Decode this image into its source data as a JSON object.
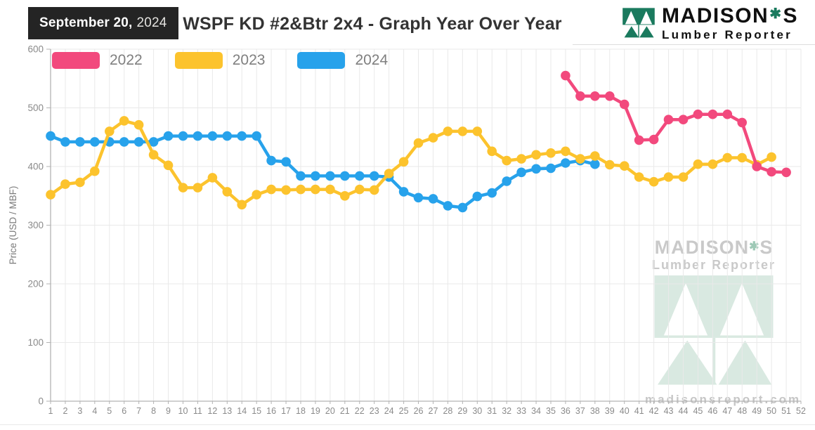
{
  "header": {
    "date_bold": "September 20,",
    "date_year": "2024",
    "brand": {
      "name": "MADISON",
      "suffix": "S",
      "subtitle": "Lumber Reporter"
    }
  },
  "watermark": {
    "brand": "MADISON",
    "suffix": "S",
    "subtitle": "Lumber Reporter",
    "site": "madisonsreport.com"
  },
  "colors": {
    "brand_green": "#1A7A5E",
    "watermark_green": "#D9E9E1",
    "grid": "#e9e9e9",
    "axis": "#b3b3b3",
    "tick_text": "#8a8a8a"
  },
  "chart_data": {
    "type": "line",
    "title": "WSPF KD #2&Btr 2x4 - Graph Year Over Year",
    "xlabel": "",
    "ylabel": "Price (USD / MBF)",
    "ylim": [
      0,
      600
    ],
    "yticks": [
      0,
      100,
      200,
      300,
      400,
      500,
      600
    ],
    "xticks": [
      1,
      2,
      3,
      4,
      5,
      6,
      7,
      8,
      9,
      10,
      11,
      12,
      13,
      14,
      15,
      16,
      17,
      18,
      19,
      20,
      21,
      22,
      23,
      24,
      25,
      26,
      27,
      28,
      29,
      30,
      31,
      32,
      33,
      34,
      35,
      36,
      37,
      38,
      39,
      40,
      41,
      42,
      43,
      44,
      45,
      46,
      47,
      48,
      49,
      50,
      51,
      52
    ],
    "grid": true,
    "legend_position": "top-left",
    "series": [
      {
        "name": "2022",
        "color": "#F2497D",
        "start_week": 36,
        "values": [
          555,
          520,
          520,
          520,
          506,
          445,
          446,
          480,
          480,
          489,
          489,
          489,
          475,
          400,
          391,
          390
        ]
      },
      {
        "name": "2023",
        "color": "#FCC32D",
        "start_week": 1,
        "values": [
          352,
          370,
          373,
          392,
          460,
          478,
          471,
          420,
          402,
          364,
          364,
          381,
          357,
          335,
          352,
          361,
          360,
          361,
          361,
          361,
          350,
          361,
          360,
          388,
          408,
          440,
          449,
          460,
          460,
          460,
          426,
          410,
          413,
          420,
          423,
          426,
          413,
          418,
          403,
          401,
          382,
          374,
          382,
          382,
          404,
          404,
          415,
          415,
          403,
          416
        ]
      },
      {
        "name": "2024",
        "color": "#27A2EB",
        "start_week": 1,
        "values": [
          452,
          442,
          442,
          442,
          442,
          442,
          442,
          442,
          452,
          452,
          452,
          452,
          452,
          452,
          452,
          410,
          408,
          384,
          384,
          384,
          384,
          384,
          384,
          382,
          357,
          347,
          345,
          333,
          330,
          349,
          355,
          375,
          390,
          396,
          397,
          406,
          410,
          404
        ]
      }
    ]
  }
}
